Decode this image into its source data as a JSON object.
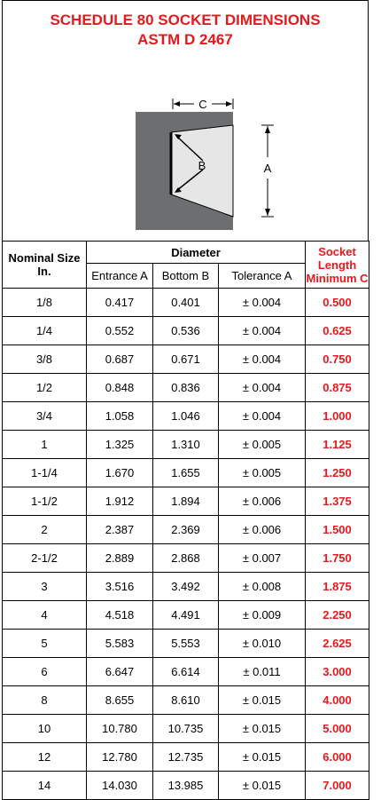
{
  "header": {
    "title_line1": "SCHEDULE 80 SOCKET DIMENSIONS",
    "title_line2": "ASTM D 2467"
  },
  "diagram": {
    "labels": [
      "C",
      "B",
      "A"
    ]
  },
  "table": {
    "header_nominal": "Nominal Size In.",
    "header_diameter": "Diameter",
    "header_socket": "Socket Length Minimum C",
    "subheaders": [
      "Entrance A",
      "Bottom B",
      "Tolerance A"
    ],
    "rows": [
      [
        "1/8",
        "0.417",
        "0.401",
        "± 0.004",
        "0.500"
      ],
      [
        "1/4",
        "0.552",
        "0.536",
        "± 0.004",
        "0.625"
      ],
      [
        "3/8",
        "0.687",
        "0.671",
        "± 0.004",
        "0.750"
      ],
      [
        "1/2",
        "0.848",
        "0.836",
        "± 0.004",
        "0.875"
      ],
      [
        "3/4",
        "1.058",
        "1.046",
        "± 0.004",
        "1.000"
      ],
      [
        "1",
        "1.325",
        "1.310",
        "± 0.005",
        "1.125"
      ],
      [
        "1-1/4",
        "1.670",
        "1.655",
        "± 0.005",
        "1.250"
      ],
      [
        "1-1/2",
        "1.912",
        "1.894",
        "± 0.006",
        "1.375"
      ],
      [
        "2",
        "2.387",
        "2.369",
        "± 0.006",
        "1.500"
      ],
      [
        "2-1/2",
        "2.889",
        "2.868",
        "± 0.007",
        "1.750"
      ],
      [
        "3",
        "3.516",
        "3.492",
        "± 0.008",
        "1.875"
      ],
      [
        "4",
        "4.518",
        "4.491",
        "± 0.009",
        "2.250"
      ],
      [
        "5",
        "5.583",
        "5.553",
        "± 0.010",
        "2.625"
      ],
      [
        "6",
        "6.647",
        "6.614",
        "± 0.011",
        "3.000"
      ],
      [
        "8",
        "8.655",
        "8.610",
        "± 0.015",
        "4.000"
      ],
      [
        "10",
        "10.780",
        "10.735",
        "± 0.015",
        "5.000"
      ],
      [
        "12",
        "12.780",
        "12.735",
        "± 0.015",
        "6.000"
      ],
      [
        "14",
        "14.030",
        "13.985",
        "± 0.015",
        "7.000"
      ]
    ]
  }
}
